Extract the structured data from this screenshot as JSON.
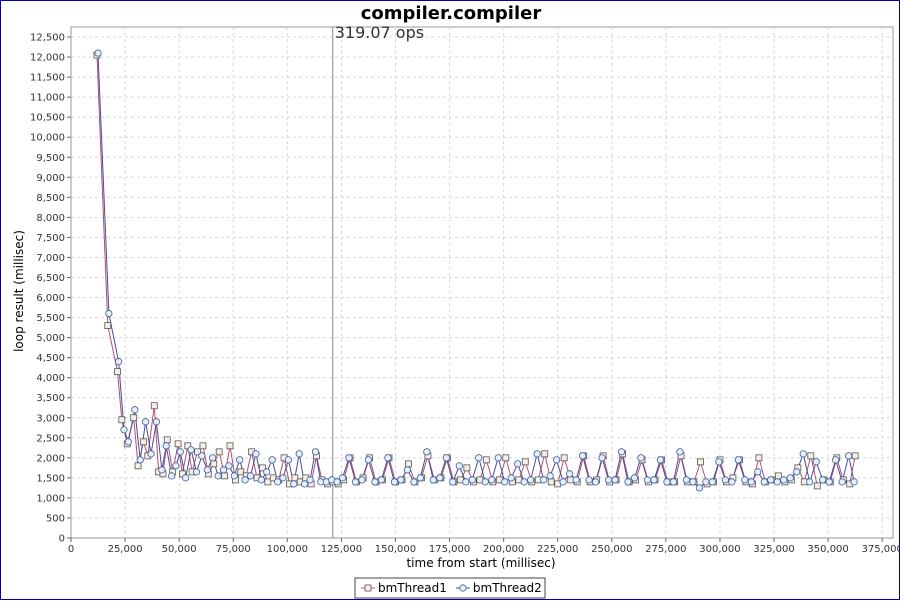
{
  "chart_data": {
    "type": "line",
    "title": "compiler.compiler",
    "xlabel": "time from start (millisec)",
    "ylabel": "loop result (millisec)",
    "xlim": [
      0,
      380000
    ],
    "ylim": [
      0,
      12750
    ],
    "x_ticks": [
      0,
      25000,
      50000,
      75000,
      100000,
      125000,
      150000,
      175000,
      200000,
      225000,
      250000,
      275000,
      300000,
      325000,
      350000,
      375000
    ],
    "x_tick_labels": [
      "0",
      "25,000",
      "50,000",
      "75,000",
      "100,000",
      "125,000",
      "150,000",
      "175,000",
      "200,000",
      "225,000",
      "250,000",
      "275,000",
      "300,000",
      "325,000",
      "350,000",
      "375,000"
    ],
    "y_ticks": [
      0,
      500,
      1000,
      1500,
      2000,
      2500,
      3000,
      3500,
      4000,
      4500,
      5000,
      5500,
      6000,
      6500,
      7000,
      7500,
      8000,
      8500,
      9000,
      9500,
      10000,
      10500,
      11000,
      11500,
      12000,
      12500
    ],
    "y_tick_labels": [
      "0",
      "500",
      "1,000",
      "1,500",
      "2,000",
      "2,500",
      "3,000",
      "3,500",
      "4,000",
      "4,500",
      "5,000",
      "5,500",
      "6,000",
      "6,500",
      "7,000",
      "7,500",
      "8,000",
      "8,500",
      "9,000",
      "9,500",
      "10,000",
      "10,500",
      "11,000",
      "11,500",
      "12,000",
      "12,500"
    ],
    "grid": true,
    "legend_position": "bottom-center",
    "annotation": {
      "text": "319.07 ops",
      "x": 121000
    },
    "series": [
      {
        "name": "bmThread1",
        "marker": "square",
        "color": "#b05070",
        "marker_fill": "#f5f0e6",
        "x": [
          12000,
          17000,
          21500,
          23500,
          26000,
          29000,
          31000,
          33500,
          35500,
          38500,
          40500,
          42500,
          44500,
          47000,
          49500,
          51500,
          54000,
          56000,
          58500,
          61000,
          63500,
          66000,
          68500,
          71000,
          73500,
          76000,
          78500,
          81000,
          83500,
          86000,
          88500,
          91000,
          93500,
          96000,
          98500,
          101000,
          103500,
          106000,
          108500,
          111000,
          113500,
          116000,
          118500,
          121000,
          123500,
          126000,
          129000,
          132000,
          135000,
          138000,
          141000,
          144000,
          147000,
          150000,
          153000,
          156000,
          159000,
          162000,
          165000,
          168000,
          171000,
          174000,
          177000,
          180000,
          183000,
          186000,
          189000,
          192000,
          195000,
          198000,
          201000,
          204000,
          207000,
          210000,
          213000,
          216000,
          219000,
          222000,
          225000,
          228000,
          231000,
          234000,
          237000,
          240000,
          243000,
          246000,
          249000,
          252000,
          255000,
          258000,
          261000,
          264000,
          267000,
          270000,
          273000,
          276000,
          279000,
          282000,
          285000,
          288000,
          291000,
          294000,
          297000,
          300000,
          303000,
          306000,
          309000,
          312000,
          315000,
          318000,
          321000,
          324000,
          327000,
          330000,
          333000,
          336000,
          339000,
          342000,
          345000,
          348000,
          351000,
          354000,
          357000,
          360000,
          362500
        ],
        "y": [
          12050,
          5300,
          4150,
          2950,
          2350,
          3000,
          1800,
          2400,
          2050,
          3300,
          1650,
          1600,
          2450,
          1650,
          2350,
          1600,
          2300,
          1650,
          2150,
          2300,
          1600,
          1850,
          2150,
          1550,
          2300,
          1450,
          1650,
          1550,
          2150,
          1500,
          1750,
          1400,
          1500,
          1450,
          2000,
          1350,
          1500,
          1400,
          1500,
          1350,
          2050,
          1450,
          1350,
          1400,
          1350,
          1450,
          2000,
          1400,
          1500,
          2000,
          1400,
          1450,
          2000,
          1400,
          1450,
          1850,
          1400,
          1500,
          2050,
          1450,
          1500,
          2000,
          1400,
          1450,
          1750,
          1400,
          1450,
          1950,
          1400,
          1450,
          2000,
          1400,
          1450,
          1900,
          1400,
          1450,
          2100,
          1400,
          1350,
          2000,
          1450,
          1400,
          2050,
          1400,
          1450,
          2050,
          1400,
          1450,
          2100,
          1400,
          1450,
          1950,
          1400,
          1450,
          1950,
          1400,
          1400,
          2050,
          1400,
          1400,
          1900,
          1350,
          1400,
          1950,
          1400,
          1500,
          1950,
          1400,
          1350,
          2000,
          1400,
          1450,
          1550,
          1400,
          1450,
          1750,
          1400,
          2050,
          1300,
          1450,
          1400,
          2000,
          1450,
          1350,
          2050
        ]
      },
      {
        "name": "bmThread2",
        "marker": "circle",
        "color": "#4a4a9a",
        "marker_fill": "#e6eef7",
        "x": [
          12500,
          17500,
          22000,
          24500,
          26500,
          29500,
          32000,
          34500,
          37000,
          39500,
          42000,
          44000,
          46500,
          48500,
          50500,
          53000,
          55500,
          58000,
          60500,
          63000,
          65500,
          68000,
          70500,
          73000,
          75500,
          78000,
          80500,
          83000,
          85500,
          88000,
          90500,
          93000,
          95500,
          98000,
          100500,
          103000,
          105500,
          108000,
          110500,
          113000,
          115500,
          118000,
          120500,
          123000,
          125500,
          128500,
          131500,
          134500,
          137500,
          140500,
          143500,
          146500,
          149500,
          152500,
          155500,
          158500,
          161500,
          164500,
          167500,
          170500,
          173500,
          176500,
          179500,
          182500,
          185500,
          188500,
          191500,
          194500,
          197500,
          200500,
          203500,
          206500,
          209500,
          212500,
          215500,
          218500,
          221500,
          224500,
          227500,
          230500,
          233500,
          236500,
          239500,
          242500,
          245500,
          248500,
          251500,
          254500,
          257500,
          260500,
          263500,
          266500,
          269500,
          272500,
          275500,
          278500,
          281500,
          284500,
          287500,
          290500,
          293500,
          296500,
          299500,
          302500,
          305500,
          308500,
          311500,
          314500,
          317500,
          320500,
          323500,
          326500,
          329500,
          332500,
          335500,
          338500,
          341500,
          344500,
          347500,
          350500,
          353500,
          356500,
          359500,
          362000
        ],
        "y": [
          12100,
          5600,
          4400,
          2700,
          2400,
          3200,
          1950,
          2900,
          2100,
          2900,
          1700,
          2300,
          1550,
          1800,
          2150,
          1500,
          2200,
          1650,
          2050,
          1700,
          2000,
          1550,
          1700,
          1800,
          1550,
          1950,
          1450,
          1550,
          2100,
          1450,
          1650,
          1950,
          1400,
          1500,
          1950,
          1350,
          2100,
          1350,
          1450,
          2150,
          1400,
          1400,
          1450,
          1400,
          1500,
          2000,
          1400,
          1450,
          1950,
          1400,
          1450,
          2000,
          1400,
          1450,
          1700,
          1400,
          1500,
          2150,
          1450,
          1500,
          2000,
          1400,
          1800,
          1400,
          1450,
          2000,
          1400,
          1450,
          2000,
          1400,
          1500,
          1850,
          1400,
          1450,
          2100,
          1450,
          1550,
          1950,
          1400,
          1600,
          1450,
          2050,
          1450,
          1400,
          2000,
          1450,
          1450,
          2150,
          1400,
          1500,
          2000,
          1450,
          1450,
          1950,
          1400,
          1400,
          2150,
          1450,
          1400,
          1250,
          1400,
          1400,
          1900,
          1450,
          1400,
          1950,
          1450,
          1400,
          1650,
          1400,
          1450,
          1400,
          1450,
          1500,
          1650,
          2100,
          1400,
          1900,
          1450,
          1400,
          1950,
          1400,
          2050,
          1400
        ]
      }
    ]
  }
}
